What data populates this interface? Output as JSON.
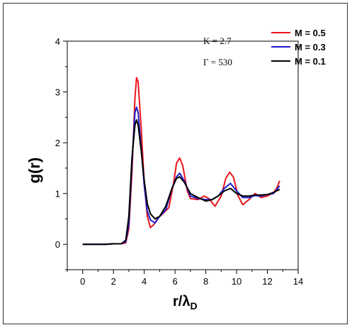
{
  "chart_data": {
    "type": "line",
    "title": "",
    "xlabel": "r/λD",
    "xlabel_main": "r/λ",
    "xlabel_sub": "D",
    "ylabel": "g(r)",
    "xlim": [
      -1,
      14
    ],
    "ylim": [
      -0.5,
      4
    ],
    "xticks": [
      0,
      2,
      4,
      6,
      8,
      10,
      12,
      14
    ],
    "yticks": [
      0,
      1,
      2,
      3,
      4
    ],
    "grid": false,
    "legend_position": "top-right",
    "annotations": [
      "Κ = 2.7",
      "Γ = 530"
    ],
    "series": [
      {
        "name": "M = 0.5",
        "color": "#e8141b",
        "points": [
          [
            0,
            0
          ],
          [
            1.5,
            0
          ],
          [
            2,
            0.01
          ],
          [
            2.5,
            0.01
          ],
          [
            2.8,
            0.03
          ],
          [
            3.0,
            0.3
          ],
          [
            3.2,
            1.4
          ],
          [
            3.4,
            2.9
          ],
          [
            3.5,
            3.28
          ],
          [
            3.6,
            3.2
          ],
          [
            3.8,
            2.3
          ],
          [
            4.0,
            1.2
          ],
          [
            4.2,
            0.55
          ],
          [
            4.4,
            0.33
          ],
          [
            4.6,
            0.38
          ],
          [
            4.9,
            0.52
          ],
          [
            5.2,
            0.6
          ],
          [
            5.6,
            0.72
          ],
          [
            5.9,
            1.2
          ],
          [
            6.1,
            1.6
          ],
          [
            6.3,
            1.7
          ],
          [
            6.5,
            1.55
          ],
          [
            6.8,
            1.05
          ],
          [
            7.0,
            0.9
          ],
          [
            7.5,
            0.88
          ],
          [
            7.9,
            0.95
          ],
          [
            8.2,
            0.9
          ],
          [
            8.6,
            0.75
          ],
          [
            9.0,
            0.95
          ],
          [
            9.3,
            1.3
          ],
          [
            9.55,
            1.42
          ],
          [
            9.8,
            1.32
          ],
          [
            10.1,
            0.95
          ],
          [
            10.4,
            0.78
          ],
          [
            10.8,
            0.88
          ],
          [
            11.2,
            1.0
          ],
          [
            11.6,
            0.92
          ],
          [
            12.0,
            0.95
          ],
          [
            12.4,
            1.02
          ],
          [
            12.6,
            1.1
          ],
          [
            12.8,
            1.25
          ]
        ]
      },
      {
        "name": "M = 0.3",
        "color": "#1c1ccc",
        "points": [
          [
            0,
            0
          ],
          [
            1.5,
            0
          ],
          [
            2,
            0.01
          ],
          [
            2.5,
            0.01
          ],
          [
            2.8,
            0.05
          ],
          [
            3.0,
            0.4
          ],
          [
            3.2,
            1.6
          ],
          [
            3.4,
            2.6
          ],
          [
            3.5,
            2.7
          ],
          [
            3.6,
            2.6
          ],
          [
            3.8,
            1.9
          ],
          [
            4.0,
            1.15
          ],
          [
            4.2,
            0.65
          ],
          [
            4.4,
            0.48
          ],
          [
            4.7,
            0.42
          ],
          [
            5.0,
            0.55
          ],
          [
            5.4,
            0.68
          ],
          [
            5.8,
            1.1
          ],
          [
            6.1,
            1.33
          ],
          [
            6.3,
            1.4
          ],
          [
            6.6,
            1.25
          ],
          [
            7.0,
            0.95
          ],
          [
            7.5,
            0.9
          ],
          [
            8.0,
            0.88
          ],
          [
            8.4,
            0.88
          ],
          [
            8.8,
            0.95
          ],
          [
            9.2,
            1.1
          ],
          [
            9.6,
            1.2
          ],
          [
            10.0,
            1.05
          ],
          [
            10.4,
            0.92
          ],
          [
            10.8,
            0.92
          ],
          [
            11.2,
            0.96
          ],
          [
            11.6,
            0.95
          ],
          [
            12.0,
            0.98
          ],
          [
            12.4,
            1.0
          ],
          [
            12.8,
            1.15
          ]
        ]
      },
      {
        "name": "M = 0.1",
        "color": "#000000",
        "points": [
          [
            0,
            0
          ],
          [
            1.5,
            0
          ],
          [
            2,
            0.01
          ],
          [
            2.5,
            0.01
          ],
          [
            2.8,
            0.08
          ],
          [
            3.0,
            0.55
          ],
          [
            3.2,
            1.7
          ],
          [
            3.4,
            2.35
          ],
          [
            3.5,
            2.45
          ],
          [
            3.6,
            2.35
          ],
          [
            3.8,
            1.85
          ],
          [
            4.0,
            1.25
          ],
          [
            4.2,
            0.8
          ],
          [
            4.4,
            0.6
          ],
          [
            4.7,
            0.5
          ],
          [
            5.0,
            0.55
          ],
          [
            5.4,
            0.75
          ],
          [
            5.8,
            1.1
          ],
          [
            6.1,
            1.3
          ],
          [
            6.3,
            1.33
          ],
          [
            6.6,
            1.22
          ],
          [
            7.0,
            1.0
          ],
          [
            7.5,
            0.92
          ],
          [
            8.0,
            0.85
          ],
          [
            8.4,
            0.88
          ],
          [
            8.8,
            0.95
          ],
          [
            9.2,
            1.05
          ],
          [
            9.6,
            1.1
          ],
          [
            10.0,
            1.0
          ],
          [
            10.4,
            0.95
          ],
          [
            10.8,
            0.95
          ],
          [
            11.2,
            0.97
          ],
          [
            11.6,
            0.97
          ],
          [
            12.0,
            0.98
          ],
          [
            12.4,
            1.02
          ],
          [
            12.8,
            1.08
          ]
        ]
      }
    ]
  }
}
